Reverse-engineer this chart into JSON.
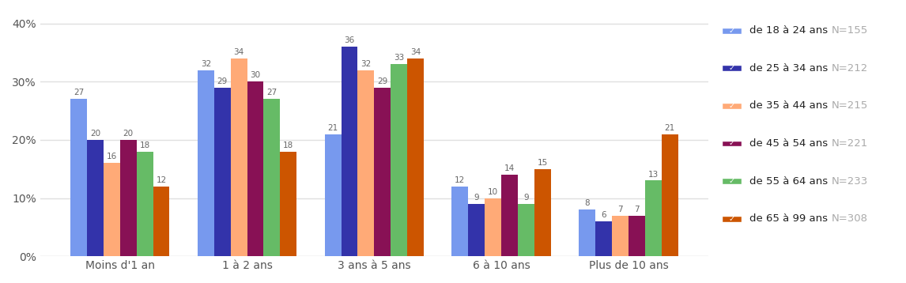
{
  "categories": [
    "Moins d'1 an",
    "1 à 2 ans",
    "3 ans à 5 ans",
    "6 à 10 ans",
    "Plus de 10 ans"
  ],
  "series": [
    {
      "label": "de 18 à 24 ans",
      "n": "N=155",
      "color": "#7799ee",
      "values": [
        27,
        32,
        21,
        12,
        8
      ]
    },
    {
      "label": "de 25 à 34 ans",
      "n": "N=212",
      "color": "#3333aa",
      "values": [
        20,
        29,
        36,
        9,
        6
      ]
    },
    {
      "label": "de 35 à 44 ans",
      "n": "N=215",
      "color": "#ffaa77",
      "values": [
        16,
        34,
        32,
        10,
        7
      ]
    },
    {
      "label": "de 45 à 54 ans",
      "n": "N=221",
      "color": "#881155",
      "values": [
        20,
        30,
        29,
        14,
        7
      ]
    },
    {
      "label": "de 55 à 64 ans",
      "n": "N=233",
      "color": "#66bb66",
      "values": [
        18,
        27,
        33,
        9,
        13
      ]
    },
    {
      "label": "de 65 à 99 ans",
      "n": "N=308",
      "color": "#cc5500",
      "values": [
        12,
        18,
        34,
        15,
        21
      ]
    }
  ],
  "yticks": [
    0,
    10,
    20,
    30,
    40
  ],
  "ylim": [
    0,
    42
  ],
  "background_color": "#ffffff",
  "bar_width": 0.13,
  "label_fontsize": 7.5,
  "legend_fontsize": 9.5,
  "tick_fontsize": 10,
  "grid_color": "#e0e0e0"
}
